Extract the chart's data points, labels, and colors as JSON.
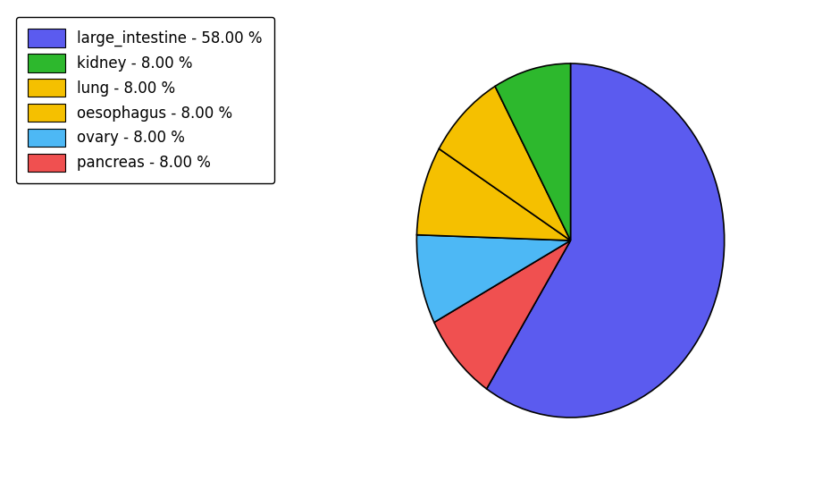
{
  "labels": [
    "large_intestine",
    "pancreas",
    "ovary",
    "oesophagus",
    "lung",
    "kidney"
  ],
  "values": [
    58.0,
    8.0,
    8.0,
    8.0,
    8.0,
    8.0
  ],
  "colors": [
    "#5b5bef",
    "#f05050",
    "#4db8f5",
    "#f5c000",
    "#f5c000",
    "#2db82d"
  ],
  "legend_labels": [
    "large_intestine - 58.00 %",
    "kidney - 8.00 %",
    "lung - 8.00 %",
    "oesophagus - 8.00 %",
    "ovary - 8.00 %",
    "pancreas - 8.00 %"
  ],
  "legend_colors": [
    "#5b5bef",
    "#2db82d",
    "#f5c000",
    "#f5c000",
    "#4db8f5",
    "#f05050"
  ],
  "startangle": 90,
  "figsize": [
    9.39,
    5.38
  ],
  "dpi": 100
}
